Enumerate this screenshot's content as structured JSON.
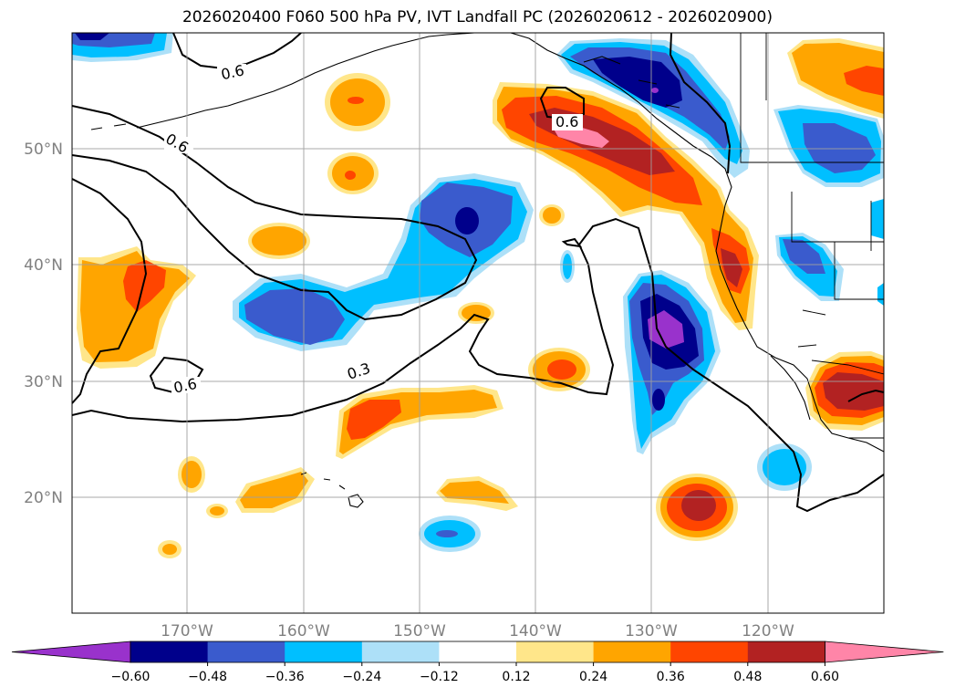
{
  "title": "2026020400 F060 500 hPa PV, IVT Landfall PC (2026020612 - 2026020900)",
  "lat_labels": [
    "50°N",
    "40°N",
    "30°N",
    "20°N"
  ],
  "lon_labels": [
    "170°W",
    "160°W",
    "150°W",
    "140°W",
    "130°W",
    "120°W"
  ],
  "colorbar": {
    "ticks": [
      "−0.60",
      "−0.48",
      "−0.36",
      "−0.24",
      "−0.12",
      "0.12",
      "0.24",
      "0.36",
      "0.48",
      "0.60"
    ],
    "colors": [
      "#9932CC",
      "#00008B",
      "#3A5BCD",
      "#00BFFF",
      "#ADE0F8",
      "#FFFFFF",
      "#FFE68A",
      "#FFA500",
      "#FF4500",
      "#B22222",
      "#FF85A8"
    ]
  },
  "contour_labels": [
    "0.6",
    "0.6",
    "0.6",
    "0.3",
    "0.6"
  ],
  "colors": {
    "pink": "#FF85A8",
    "firebrick": "#B22222",
    "orangered": "#FF4500",
    "orange": "#FFA500",
    "yellow": "#FFE68A",
    "lightblue": "#ADE0F8",
    "deepskyblue": "#00BFFF",
    "royal": "#3A5BCD",
    "navy": "#00008B",
    "purple": "#9932CC"
  }
}
